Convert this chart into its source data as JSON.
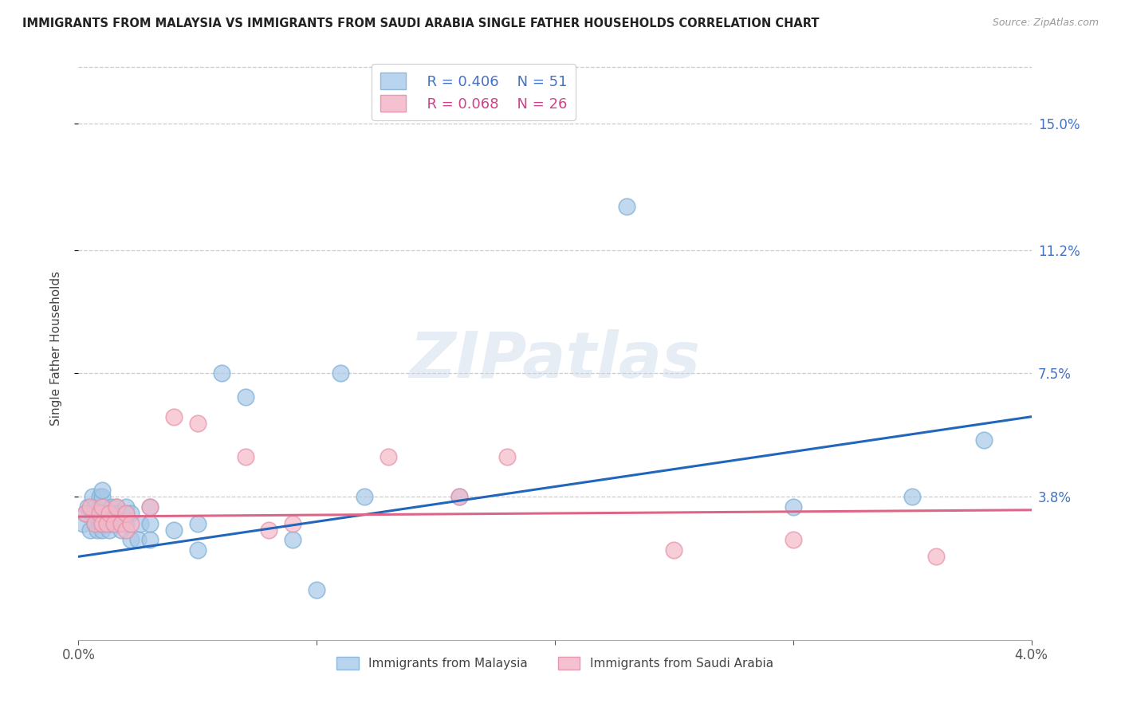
{
  "title": "IMMIGRANTS FROM MALAYSIA VS IMMIGRANTS FROM SAUDI ARABIA SINGLE FATHER HOUSEHOLDS CORRELATION CHART",
  "source": "Source: ZipAtlas.com",
  "ylabel": "Single Father Households",
  "y_tick_labels": [
    "15.0%",
    "11.2%",
    "7.5%",
    "3.8%"
  ],
  "y_tick_values": [
    0.15,
    0.112,
    0.075,
    0.038
  ],
  "xlim": [
    0.0,
    0.04
  ],
  "ylim": [
    -0.005,
    0.17
  ],
  "legend1_R": "0.406",
  "legend1_N": "51",
  "legend2_R": "0.068",
  "legend2_N": "26",
  "malaysia_color": "#a8c8e8",
  "malaysia_edge_color": "#7aafd4",
  "saudi_color": "#f4b8c8",
  "saudi_edge_color": "#e890a8",
  "malaysia_line_color": "#2266bb",
  "saudi_line_color": "#dd6688",
  "watermark": "ZIPatlas",
  "malaysia_scatter_x": [
    0.0002,
    0.0003,
    0.0004,
    0.0005,
    0.0006,
    0.0006,
    0.0007,
    0.0007,
    0.0008,
    0.0008,
    0.0009,
    0.0009,
    0.001,
    0.001,
    0.001,
    0.001,
    0.001,
    0.0012,
    0.0012,
    0.0013,
    0.0014,
    0.0014,
    0.0015,
    0.0016,
    0.0016,
    0.0017,
    0.0018,
    0.002,
    0.002,
    0.002,
    0.0022,
    0.0022,
    0.0025,
    0.0026,
    0.003,
    0.003,
    0.003,
    0.004,
    0.005,
    0.005,
    0.006,
    0.007,
    0.009,
    0.01,
    0.011,
    0.012,
    0.016,
    0.023,
    0.03,
    0.035,
    0.038
  ],
  "malaysia_scatter_y": [
    0.03,
    0.033,
    0.035,
    0.028,
    0.033,
    0.038,
    0.03,
    0.035,
    0.028,
    0.033,
    0.03,
    0.038,
    0.028,
    0.03,
    0.033,
    0.038,
    0.04,
    0.03,
    0.033,
    0.028,
    0.03,
    0.035,
    0.033,
    0.03,
    0.035,
    0.033,
    0.028,
    0.03,
    0.033,
    0.035,
    0.025,
    0.033,
    0.025,
    0.03,
    0.025,
    0.03,
    0.035,
    0.028,
    0.022,
    0.03,
    0.075,
    0.068,
    0.025,
    0.01,
    0.075,
    0.038,
    0.038,
    0.125,
    0.035,
    0.038,
    0.055
  ],
  "saudi_scatter_x": [
    0.0003,
    0.0005,
    0.0007,
    0.0009,
    0.001,
    0.001,
    0.0012,
    0.0013,
    0.0015,
    0.0016,
    0.0018,
    0.002,
    0.002,
    0.0022,
    0.003,
    0.004,
    0.005,
    0.007,
    0.008,
    0.009,
    0.013,
    0.016,
    0.018,
    0.025,
    0.03,
    0.036
  ],
  "saudi_scatter_y": [
    0.033,
    0.035,
    0.03,
    0.033,
    0.03,
    0.035,
    0.03,
    0.033,
    0.03,
    0.035,
    0.03,
    0.028,
    0.033,
    0.03,
    0.035,
    0.062,
    0.06,
    0.05,
    0.028,
    0.03,
    0.05,
    0.038,
    0.05,
    0.022,
    0.025,
    0.02
  ],
  "malaysia_trendline_x": [
    0.0,
    0.04
  ],
  "malaysia_trendline_y": [
    0.02,
    0.062
  ],
  "saudi_trendline_x": [
    0.0,
    0.04
  ],
  "saudi_trendline_y": [
    0.032,
    0.034
  ],
  "x_tick_positions": [
    0.0,
    0.01,
    0.02,
    0.03,
    0.04
  ],
  "x_tick_labels": [
    "0.0%",
    "",
    "",
    "",
    "4.0%"
  ]
}
